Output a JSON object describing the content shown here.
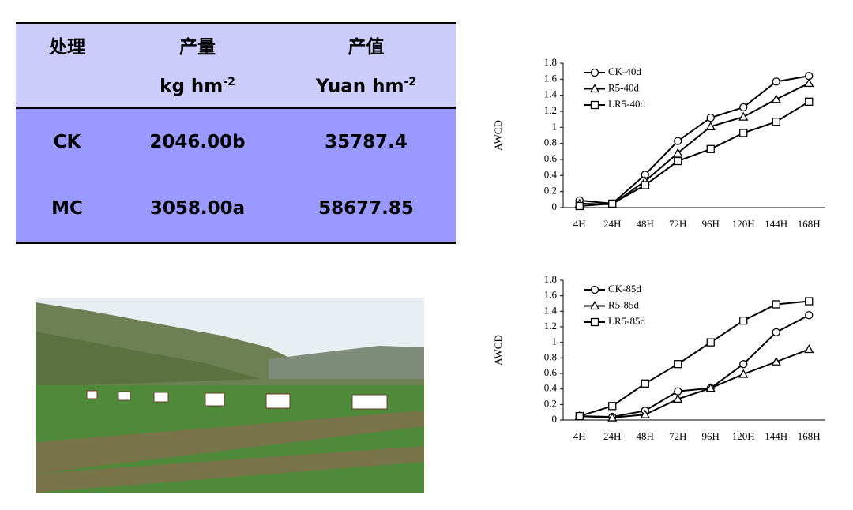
{
  "table": {
    "header": [
      [
        "处理",
        "产量",
        "产值"
      ],
      [
        null,
        {
          "text": "kg hm",
          "sup": "-2"
        },
        {
          "text": "Yuan hm",
          "sup": "-2"
        }
      ]
    ],
    "rows": [
      [
        "CK",
        "2046.00b",
        "35787.4"
      ],
      [
        "MC",
        "3058.00a",
        "58677.85"
      ]
    ]
  },
  "chart_data": [
    {
      "type": "line",
      "ylabel": "AWCD",
      "categories": [
        "4H",
        "24H",
        "48H",
        "72H",
        "96H",
        "120H",
        "144H",
        "168H"
      ],
      "ylim": [
        0,
        1.8
      ],
      "yticks": [
        0,
        0.2,
        0.4,
        0.6,
        0.8,
        1,
        1.2,
        1.4,
        1.6,
        1.8
      ],
      "legend": "upper left",
      "series": [
        {
          "name": "CK-40d",
          "color": "#000000",
          "marker": "circle",
          "values": [
            0.09,
            0.05,
            0.41,
            0.83,
            1.12,
            1.25,
            1.57,
            1.64
          ]
        },
        {
          "name": "R5-40d",
          "color": "#000000",
          "marker": "triangle",
          "values": [
            0.05,
            0.04,
            0.33,
            0.68,
            1.01,
            1.13,
            1.35,
            1.55
          ]
        },
        {
          "name": "LR5-40d",
          "color": "#000000",
          "marker": "square",
          "values": [
            0.02,
            0.05,
            0.28,
            0.58,
            0.73,
            0.93,
            1.07,
            1.32
          ]
        }
      ]
    },
    {
      "type": "line",
      "ylabel": "AWCD",
      "categories": [
        "4H",
        "24H",
        "48H",
        "72H",
        "96H",
        "120H",
        "144H",
        "168H"
      ],
      "ylim": [
        0,
        1.8
      ],
      "yticks": [
        0,
        0.2,
        0.4,
        0.6,
        0.8,
        1,
        1.2,
        1.4,
        1.6,
        1.8
      ],
      "legend": "upper left",
      "series": [
        {
          "name": "CK-85d",
          "color": "#000000",
          "marker": "circle",
          "values": [
            0.05,
            0.04,
            0.12,
            0.37,
            0.41,
            0.72,
            1.13,
            1.35
          ]
        },
        {
          "name": "R5-85d",
          "color": "#000000",
          "marker": "triangle",
          "values": [
            0.05,
            0.03,
            0.07,
            0.27,
            0.41,
            0.59,
            0.75,
            0.91
          ]
        },
        {
          "name": "LR5-85d",
          "color": "#000000",
          "marker": "square",
          "values": [
            0.05,
            0.18,
            0.47,
            0.72,
            1.0,
            1.28,
            1.49,
            1.53
          ]
        }
      ]
    }
  ]
}
